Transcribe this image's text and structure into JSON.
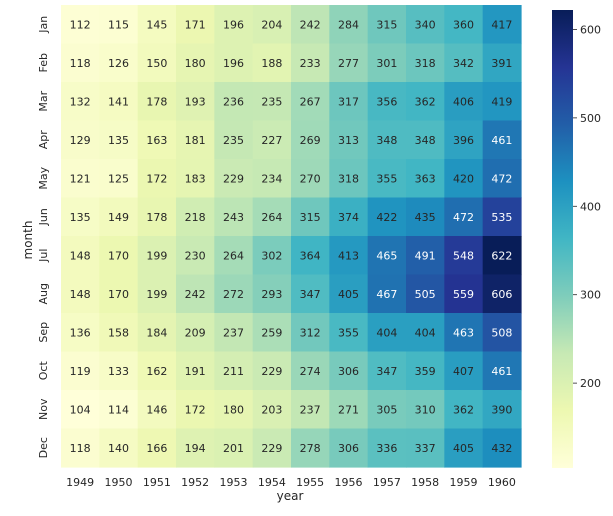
{
  "chart_data": {
    "type": "heatmap",
    "title": "",
    "xlabel": "year",
    "ylabel": "month",
    "x_categories": [
      "1949",
      "1950",
      "1951",
      "1952",
      "1953",
      "1954",
      "1955",
      "1956",
      "1957",
      "1958",
      "1959",
      "1960"
    ],
    "y_categories": [
      "Jan",
      "Feb",
      "Mar",
      "Apr",
      "May",
      "Jun",
      "Jul",
      "Aug",
      "Sep",
      "Oct",
      "Nov",
      "Dec"
    ],
    "values": [
      [
        112,
        115,
        145,
        171,
        196,
        204,
        242,
        284,
        315,
        340,
        360,
        417
      ],
      [
        118,
        126,
        150,
        180,
        196,
        188,
        233,
        277,
        301,
        318,
        342,
        391
      ],
      [
        132,
        141,
        178,
        193,
        236,
        235,
        267,
        317,
        356,
        362,
        406,
        419
      ],
      [
        129,
        135,
        163,
        181,
        235,
        227,
        269,
        313,
        348,
        348,
        396,
        461
      ],
      [
        121,
        125,
        172,
        183,
        229,
        234,
        270,
        318,
        355,
        363,
        420,
        472
      ],
      [
        135,
        149,
        178,
        218,
        243,
        264,
        315,
        374,
        422,
        435,
        472,
        535
      ],
      [
        148,
        170,
        199,
        230,
        264,
        302,
        364,
        413,
        465,
        491,
        548,
        622
      ],
      [
        148,
        170,
        199,
        242,
        272,
        293,
        347,
        405,
        467,
        505,
        559,
        606
      ],
      [
        136,
        158,
        184,
        209,
        237,
        259,
        312,
        355,
        404,
        404,
        463,
        508
      ],
      [
        119,
        133,
        162,
        191,
        211,
        229,
        274,
        306,
        347,
        359,
        407,
        461
      ],
      [
        104,
        114,
        146,
        172,
        180,
        203,
        237,
        271,
        305,
        310,
        362,
        390
      ],
      [
        118,
        140,
        166,
        194,
        201,
        229,
        278,
        306,
        336,
        337,
        405,
        432
      ]
    ],
    "vmin": 104,
    "vmax": 622,
    "annotated": true,
    "colormap": "YlGnBu",
    "colorbar": {
      "ticks": [
        200,
        300,
        400,
        500,
        600
      ],
      "tick_labels": [
        "200",
        "300",
        "400",
        "500",
        "600"
      ]
    },
    "grid": false,
    "legend": "colorbar-right"
  }
}
